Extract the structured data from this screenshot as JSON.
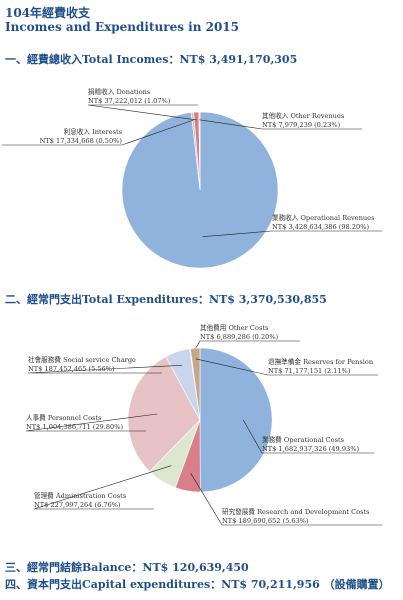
{
  "header": {
    "title_zh": "104年經費收支",
    "title_en": "Incomes and Expenditures in 2015"
  },
  "sections": {
    "incomes": "一、經費總收入Total Incomes：NT$ 3,491,170,305",
    "expenditures": "二、經常門支出Total Expenditures：NT$ 3,370,530,855",
    "balance": "三、經常門結餘Balance：NT$ 120,639,450",
    "capital": "四、資本門支出Capital expenditures：NT$ 70,211,956 （設備購置）"
  },
  "colors": {
    "title": "#1f4e8c",
    "blue": "#8fb3dc",
    "pink": "#e8c3c6",
    "rose": "#d97f8a",
    "tan": "#c9a58a",
    "green": "#dde6cf",
    "lavender": "#c8d5ea",
    "gray": "#c6c6c6"
  },
  "chart_data": [
    {
      "type": "pie",
      "title": "",
      "slices": [
        {
          "name": "業務收入 Operational Revenues",
          "amount": "NT$ 3,428,634,386",
          "percent": 98.2,
          "percent_label": "(98.20%)",
          "color": "#8fb3dc"
        },
        {
          "name": "利息收入 Interests",
          "amount": "NT$ 17,334,668",
          "percent": 0.5,
          "percent_label": "(0.50%)",
          "color": "#c6c6c6"
        },
        {
          "name": "捐贈收入 Donations",
          "amount": "NT$ 37,222,012",
          "percent": 1.07,
          "percent_label": "(1.07%)",
          "color": "#d97f8a"
        },
        {
          "name": "其他收入 Other Revenues",
          "amount": "NT$ 7,979,239",
          "percent": 0.23,
          "percent_label": "(0.23%)",
          "color": "#dde6cf"
        }
      ]
    },
    {
      "type": "pie",
      "title": "",
      "slices": [
        {
          "name": "業務費 Operational Costs",
          "amount": "NT$ 1,682,937,326",
          "percent": 49.93,
          "percent_label": "(49.93%)",
          "color": "#8fb3dc"
        },
        {
          "name": "研究發展費 Research and Development Costs",
          "amount": "NT$ 189,690,652",
          "percent": 5.63,
          "percent_label": "(5.63%)",
          "color": "#d97f8a"
        },
        {
          "name": "管理費 Administration Costs",
          "amount": "NT$ 227,997,264",
          "percent": 6.76,
          "percent_label": "(6.76%)",
          "color": "#dde6cf"
        },
        {
          "name": "人事費 Personnel Costs",
          "amount": "NT$ 1,004,386,711",
          "percent": 29.8,
          "percent_label": "(29.80%)",
          "color": "#e8c3c6"
        },
        {
          "name": "社會服務費 Social service Charge",
          "amount": "NT$ 187,452,465",
          "percent": 5.56,
          "percent_label": "(5.56%)",
          "color": "#c8d5ea"
        },
        {
          "name": "其他費用 Other Costs",
          "amount": "NT$ 6,889,286",
          "percent": 0.2,
          "percent_label": "(0.20%)",
          "color": "#c6c6c6"
        },
        {
          "name": "退撫準備金 Reserves for Pension",
          "amount": "NT$ 71,177,151",
          "percent": 2.11,
          "percent_label": "(2.11%)",
          "color": "#c9a58a"
        }
      ]
    }
  ]
}
